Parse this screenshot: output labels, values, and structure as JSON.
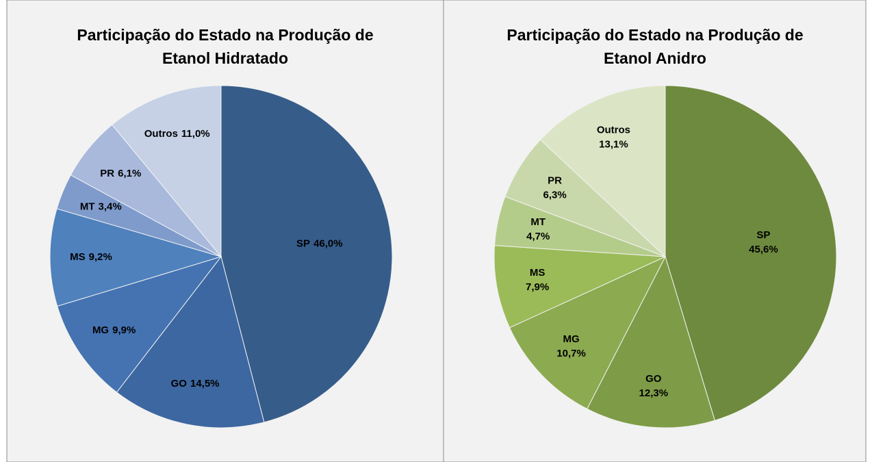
{
  "chart_data": [
    {
      "type": "pie",
      "title": "Participação  do Estado na Produção de\nEtanol Hidratado",
      "categories": [
        "SP",
        "GO",
        "MG",
        "MS",
        "MT",
        "PR",
        "Outros"
      ],
      "values": [
        46.0,
        14.5,
        9.9,
        9.2,
        3.4,
        6.1,
        11.0
      ],
      "value_labels": [
        "46,0%",
        "14,5%",
        "9,9%",
        "9,2%",
        "3,4%",
        "6,1%",
        "11,0%"
      ],
      "colors": [
        "#365c8a",
        "#3d67a0",
        "#4573b2",
        "#4f81bd",
        "#7f9bcc",
        "#a8b9dc",
        "#c6d1e6"
      ]
    },
    {
      "type": "pie",
      "title": "Participação  do Estado na Produção de\nEtanol Anidro",
      "categories": [
        "SP",
        "GO",
        "MG",
        "MS",
        "MT",
        "PR",
        "Outros"
      ],
      "values": [
        45.6,
        12.3,
        10.7,
        7.9,
        4.7,
        6.3,
        13.1
      ],
      "value_labels": [
        "45,6%",
        "12,3%",
        "10,7%",
        "7,9%",
        "4,7%",
        "6,3%",
        "13,1%"
      ],
      "colors": [
        "#6e8a3e",
        "#7e9c48",
        "#8caa50",
        "#9bbb59",
        "#b4cc8a",
        "#c9d8aa",
        "#dbe5c6"
      ]
    }
  ]
}
